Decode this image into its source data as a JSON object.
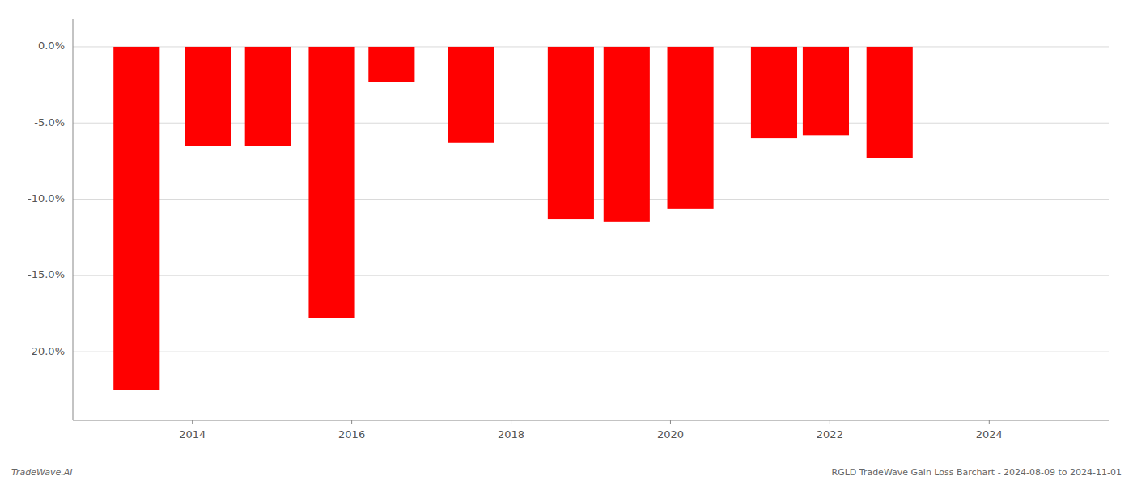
{
  "chart_data": {
    "type": "bar",
    "x": [
      2013.3,
      2014.2,
      2014.95,
      2015.75,
      2016.5,
      2017.5,
      2018.75,
      2019.45,
      2020.25,
      2021.3,
      2021.95,
      2022.75
    ],
    "values": [
      -22.5,
      -6.5,
      -6.5,
      -17.8,
      -2.3,
      -6.3,
      -11.3,
      -11.5,
      -10.6,
      -6.0,
      -5.8,
      -7.3
    ],
    "color": "#ff0000",
    "xlim": [
      2012.5,
      2025.5
    ],
    "xticks": [
      2014,
      2016,
      2018,
      2020,
      2022,
      2024
    ],
    "ylim": [
      -24.5,
      1.8
    ],
    "yticks": [
      {
        "value": 0.0,
        "label": "0.0%"
      },
      {
        "value": -5.0,
        "label": "-5.0%"
      },
      {
        "value": -10.0,
        "label": "-10.0%"
      },
      {
        "value": -15.0,
        "label": "-15.0%"
      },
      {
        "value": -20.0,
        "label": "-20.0%"
      }
    ],
    "grid": true,
    "annotations": [
      "TradeWave.AI",
      "RGLD TradeWave Gain Loss Barchart - 2024-08-09 to 2024-11-01"
    ]
  }
}
